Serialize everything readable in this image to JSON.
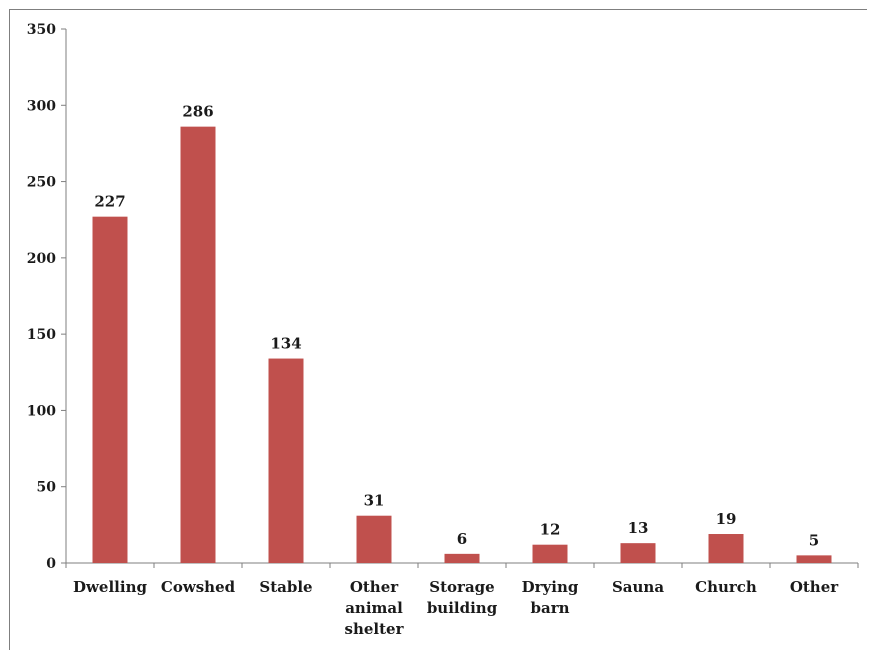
{
  "chart_data": {
    "type": "bar",
    "title": "",
    "xlabel": "",
    "ylabel": "",
    "categories": [
      [
        "Dwelling"
      ],
      [
        "Cowshed"
      ],
      [
        "Stable"
      ],
      [
        "Other",
        "animal",
        "shelter"
      ],
      [
        "Storage",
        "building"
      ],
      [
        "Drying",
        "barn"
      ],
      [
        "Sauna"
      ],
      [
        "Church"
      ],
      [
        "Other"
      ]
    ],
    "values": [
      227,
      286,
      134,
      31,
      6,
      12,
      13,
      19,
      5
    ],
    "ylim": [
      0,
      350
    ],
    "yticks": [
      0,
      50,
      100,
      150,
      200,
      250,
      300,
      350
    ],
    "data_labels": true,
    "grid": false,
    "legend": "none",
    "bar_color": "#c0504d"
  }
}
